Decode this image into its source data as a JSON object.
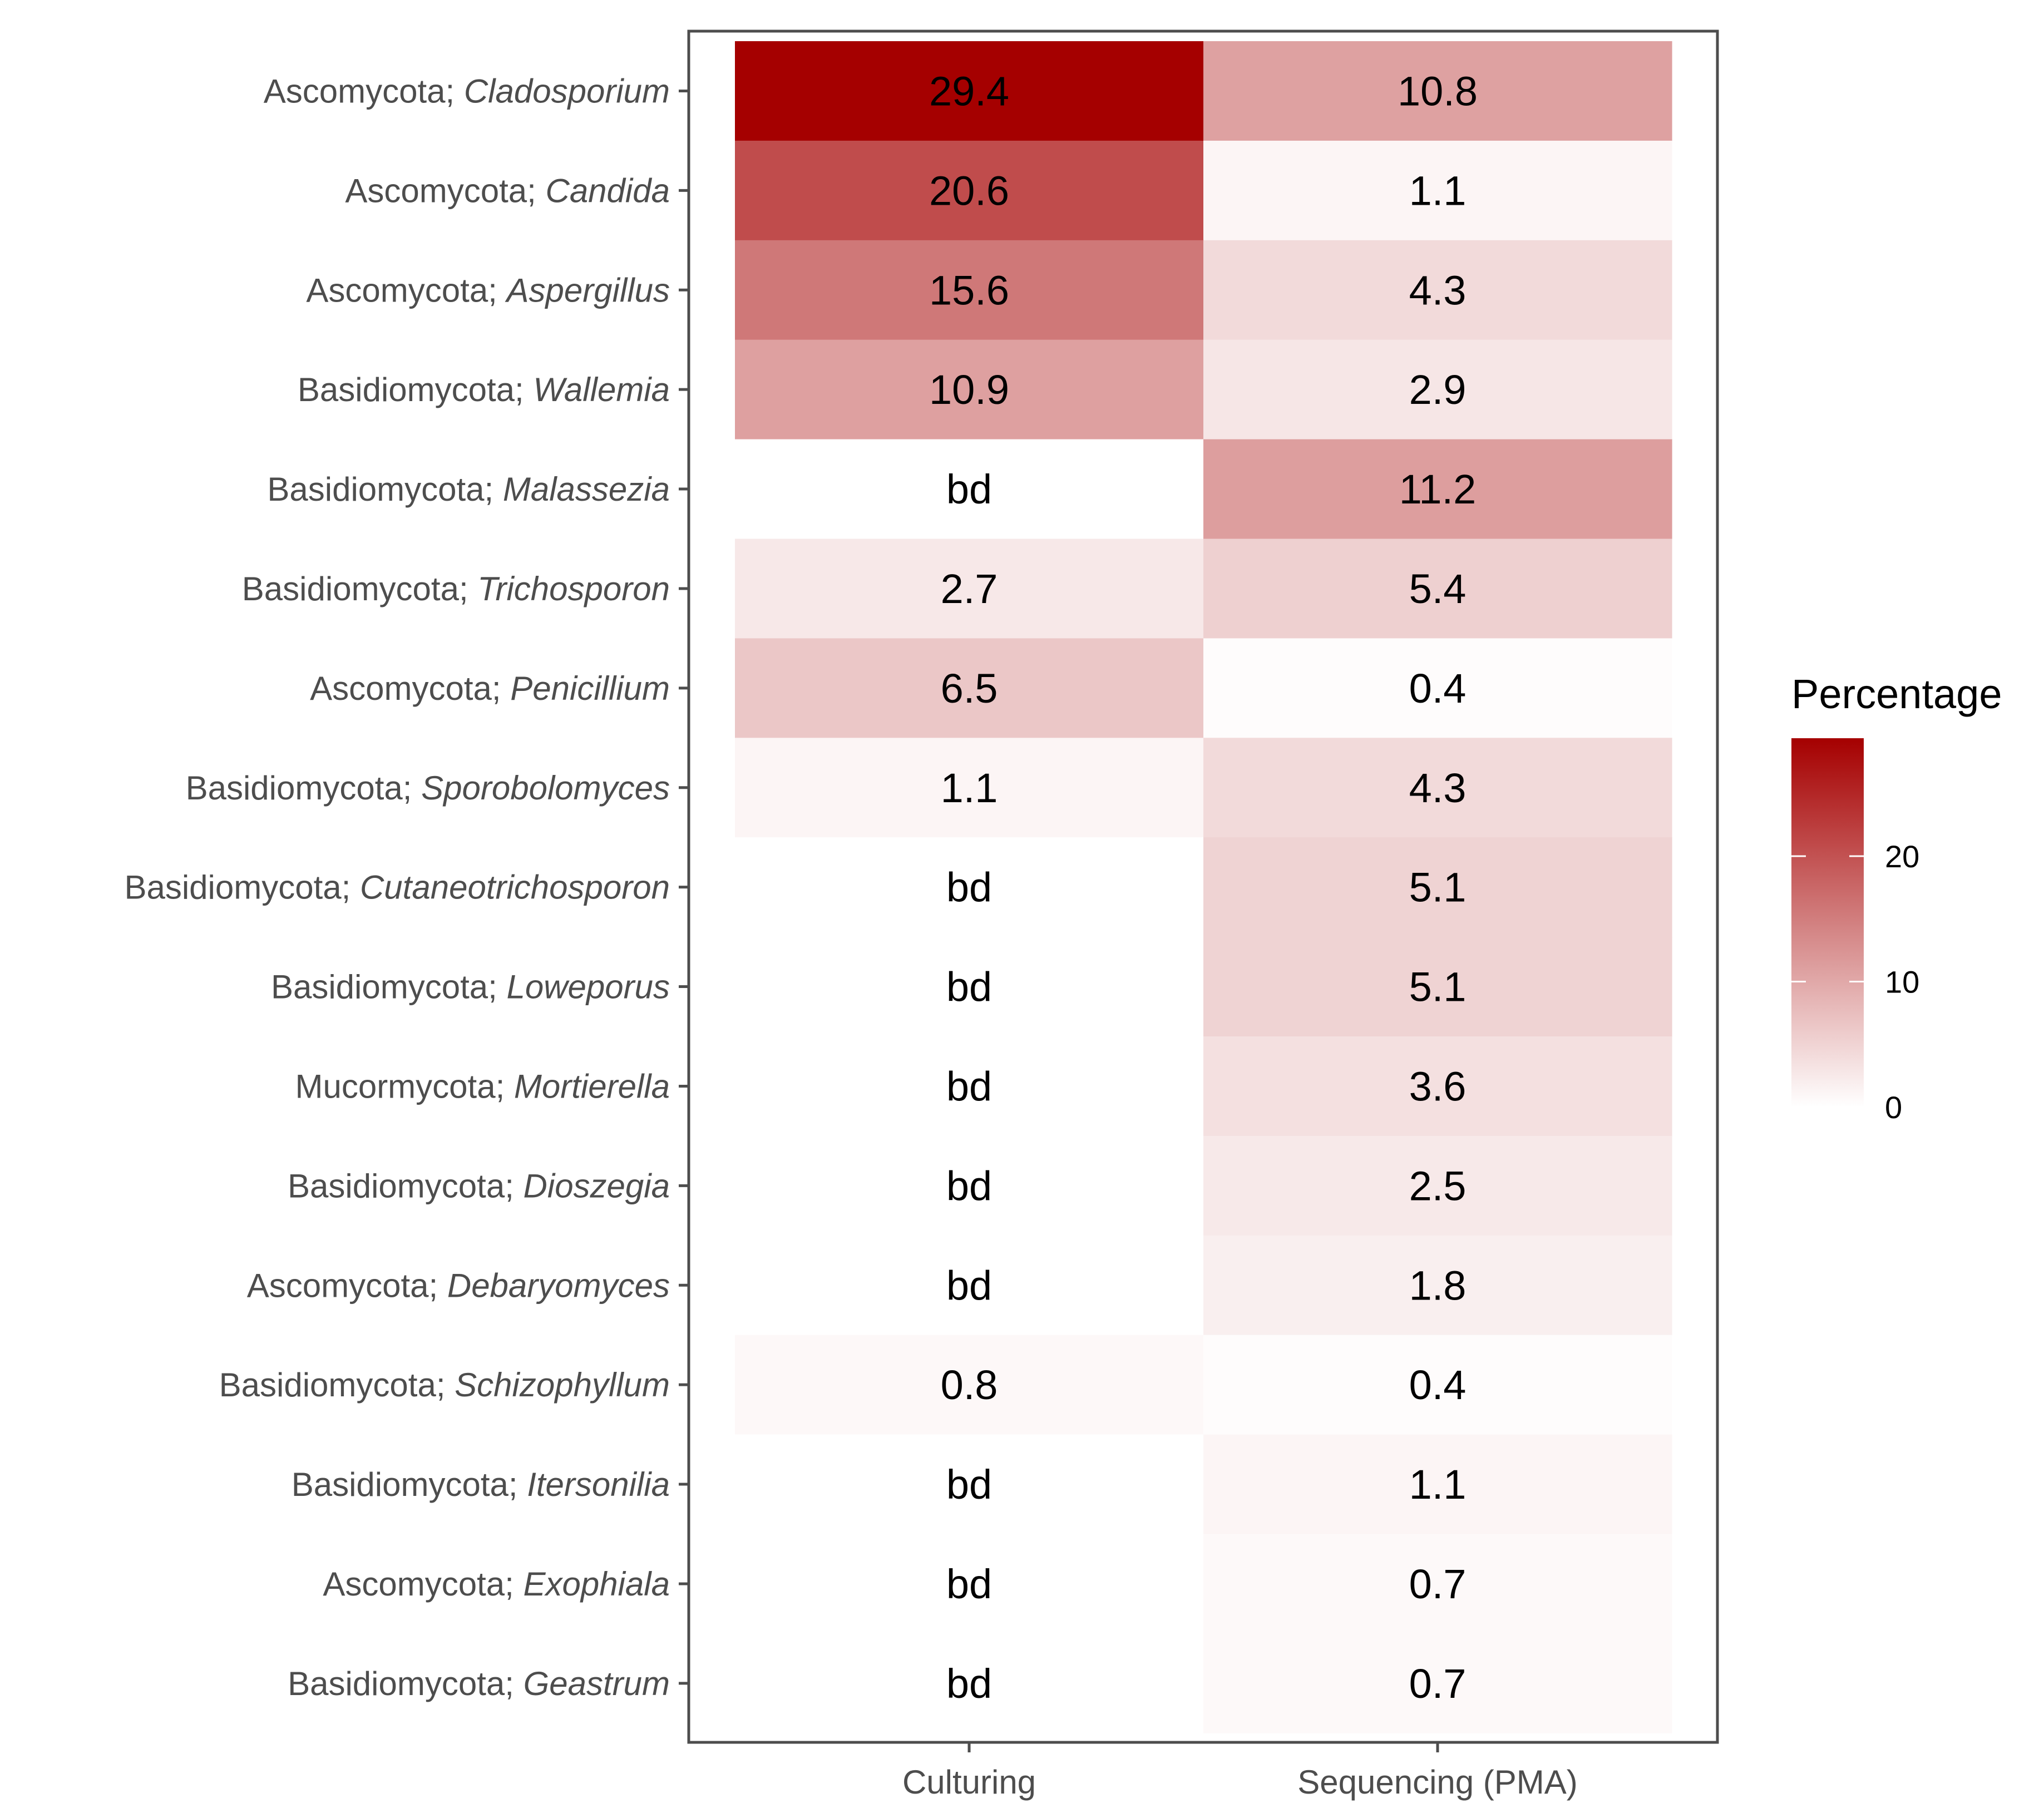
{
  "chart_data": {
    "type": "heatmap",
    "title": "",
    "xlabel": "",
    "ylabel": "",
    "columns": [
      "Culturing",
      "Sequencing (PMA)"
    ],
    "rows": [
      {
        "phylum": "Ascomycota; ",
        "genus": "Cladosporium",
        "values": [
          29.4,
          10.8
        ],
        "labels": [
          "29.4",
          "10.8"
        ]
      },
      {
        "phylum": "Ascomycota; ",
        "genus": "Candida",
        "values": [
          20.6,
          1.1
        ],
        "labels": [
          "20.6",
          "1.1"
        ]
      },
      {
        "phylum": "Ascomycota; ",
        "genus": "Aspergillus",
        "values": [
          15.6,
          4.3
        ],
        "labels": [
          "15.6",
          "4.3"
        ]
      },
      {
        "phylum": "Basidiomycota; ",
        "genus": "Wallemia",
        "values": [
          10.9,
          2.9
        ],
        "labels": [
          "10.9",
          "2.9"
        ]
      },
      {
        "phylum": "Basidiomycota; ",
        "genus": "Malassezia",
        "values": [
          0,
          11.2
        ],
        "labels": [
          "bd",
          "11.2"
        ]
      },
      {
        "phylum": "Basidiomycota; ",
        "genus": "Trichosporon",
        "values": [
          2.7,
          5.4
        ],
        "labels": [
          "2.7",
          "5.4"
        ]
      },
      {
        "phylum": "Ascomycota; ",
        "genus": "Penicillium",
        "values": [
          6.5,
          0.4
        ],
        "labels": [
          "6.5",
          "0.4"
        ]
      },
      {
        "phylum": "Basidiomycota; ",
        "genus": "Sporobolomyces",
        "values": [
          1.1,
          4.3
        ],
        "labels": [
          "1.1",
          "4.3"
        ]
      },
      {
        "phylum": "Basidiomycota; ",
        "genus": "Cutaneotrichosporon",
        "values": [
          0,
          5.1
        ],
        "labels": [
          "bd",
          "5.1"
        ]
      },
      {
        "phylum": "Basidiomycota; ",
        "genus": "Loweporus",
        "values": [
          0,
          5.1
        ],
        "labels": [
          "bd",
          "5.1"
        ]
      },
      {
        "phylum": "Mucormycota; ",
        "genus": "Mortierella",
        "values": [
          0,
          3.6
        ],
        "labels": [
          "bd",
          "3.6"
        ]
      },
      {
        "phylum": "Basidiomycota; ",
        "genus": "Dioszegia",
        "values": [
          0,
          2.5
        ],
        "labels": [
          "bd",
          "2.5"
        ]
      },
      {
        "phylum": "Ascomycota; ",
        "genus": "Debaryomyces",
        "values": [
          0,
          1.8
        ],
        "labels": [
          "bd",
          "1.8"
        ]
      },
      {
        "phylum": "Basidiomycota; ",
        "genus": "Schizophyllum",
        "values": [
          0.8,
          0.4
        ],
        "labels": [
          "0.8",
          "0.4"
        ]
      },
      {
        "phylum": "Basidiomycota; ",
        "genus": "Itersonilia",
        "values": [
          0,
          1.1
        ],
        "labels": [
          "bd",
          "1.1"
        ]
      },
      {
        "phylum": "Ascomycota; ",
        "genus": "Exophiala",
        "values": [
          0,
          0.7
        ],
        "labels": [
          "bd",
          "0.7"
        ]
      },
      {
        "phylum": "Basidiomycota; ",
        "genus": "Geastrum",
        "values": [
          0,
          0.7
        ],
        "labels": [
          "bd",
          "0.7"
        ]
      }
    ],
    "legend": {
      "title": "Percentage",
      "ticks": [
        0,
        10,
        20
      ],
      "tick_labels": [
        "0",
        "10",
        "20"
      ],
      "range": [
        0,
        29.4
      ],
      "position": "right"
    },
    "colors": {
      "low": "#ffffff",
      "high": "#a50000",
      "frame": "#4d4d4d"
    }
  }
}
